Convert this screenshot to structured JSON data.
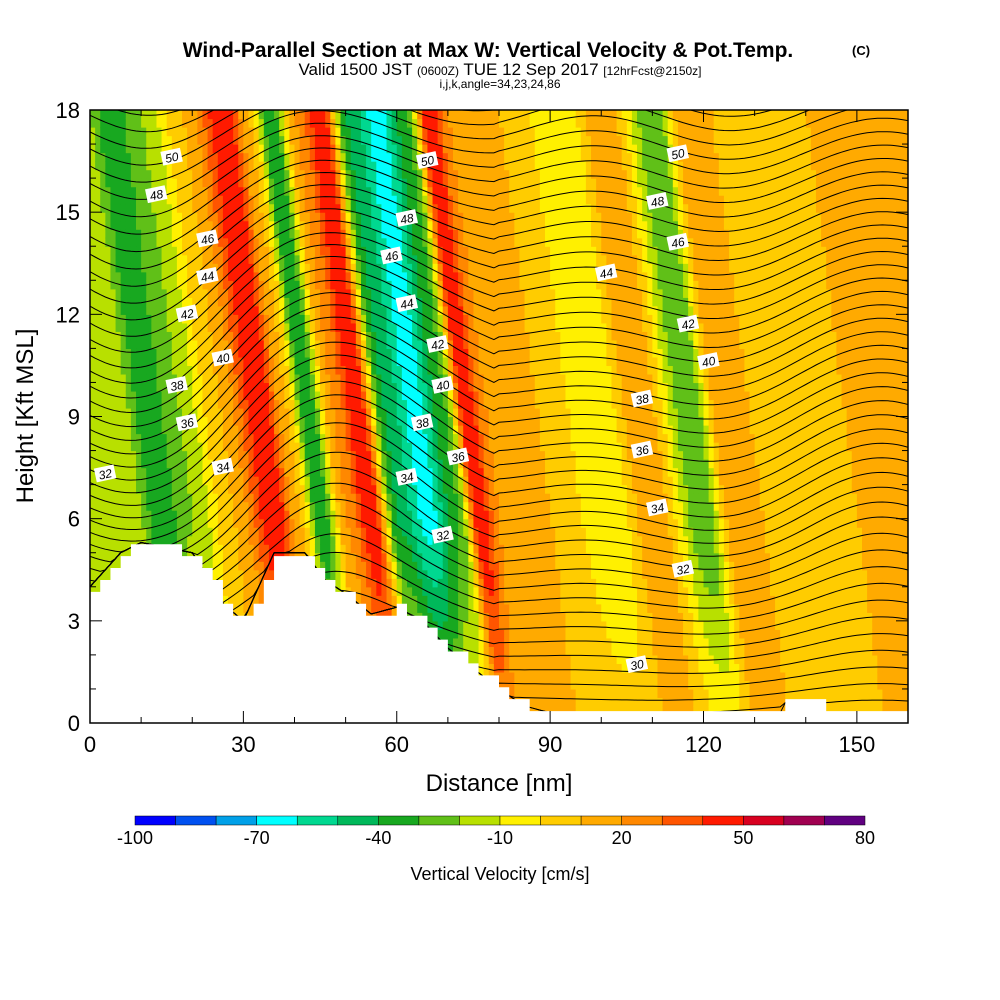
{
  "header": {
    "title": "Wind-Parallel Section at Max W: Vertical Velocity & Pot.Temp.",
    "title_unit": "(C)",
    "valid_prefix": "Valid 1500 JST",
    "valid_utc": "(0600Z)",
    "valid_date": "TUE 12 Sep 2017",
    "forecast": "[12hrFcst@2150z]",
    "indices": "i,j,k,angle=34,23,24,86"
  },
  "chart_data": {
    "type": "heatmap",
    "title": "Wind-Parallel Section at Max W: Vertical Velocity & Pot.Temp.",
    "xlabel": "Distance [nm]",
    "ylabel": "Height [Kft MSL]",
    "xlim": [
      0,
      160
    ],
    "ylim": [
      0,
      18
    ],
    "x_ticks": [
      0,
      30,
      60,
      90,
      120,
      150
    ],
    "y_ticks": [
      0,
      3,
      6,
      9,
      12,
      15,
      18
    ],
    "fill_variable": "Vertical Velocity [cm/s]",
    "colorbar": {
      "label": "Vertical Velocity [cm/s]",
      "ticks": [
        -100,
        -70,
        -40,
        -10,
        20,
        50,
        80
      ],
      "bounds": [
        -100,
        -90,
        -80,
        -70,
        -60,
        -50,
        -40,
        -30,
        -20,
        -10,
        0,
        10,
        20,
        30,
        40,
        50,
        60,
        70,
        80
      ],
      "colors": [
        "#0000ff",
        "#0050f0",
        "#00a0e8",
        "#00ffff",
        "#00d890",
        "#00b85a",
        "#18a820",
        "#60c018",
        "#b8e000",
        "#fff000",
        "#ffcc00",
        "#ffaa00",
        "#ff8800",
        "#ff5500",
        "#ff1a00",
        "#d80020",
        "#a00050",
        "#600080"
      ]
    },
    "velocity_bands": [
      {
        "x": 0,
        "value": -20
      },
      {
        "x": 3,
        "value": -40
      },
      {
        "x": 10,
        "value": -20
      },
      {
        "x": 18,
        "value": 10
      },
      {
        "x": 26,
        "value": 50
      },
      {
        "x": 31,
        "value": 10
      },
      {
        "x": 35,
        "value": -40
      },
      {
        "x": 40,
        "value": 20
      },
      {
        "x": 45,
        "value": 50
      },
      {
        "x": 50,
        "value": -40
      },
      {
        "x": 56,
        "value": -65
      },
      {
        "x": 62,
        "value": -30
      },
      {
        "x": 66,
        "value": 50
      },
      {
        "x": 70,
        "value": 20
      },
      {
        "x": 80,
        "value": 10
      },
      {
        "x": 92,
        "value": -10
      },
      {
        "x": 100,
        "value": 20
      },
      {
        "x": 110,
        "value": -30
      },
      {
        "x": 116,
        "value": 20
      },
      {
        "x": 125,
        "value": 5
      },
      {
        "x": 140,
        "value": 10
      },
      {
        "x": 158,
        "value": 15
      }
    ],
    "terrain": [
      {
        "x": 0,
        "h": 4.0
      },
      {
        "x": 3,
        "h": 4.5
      },
      {
        "x": 6,
        "h": 5.0
      },
      {
        "x": 10,
        "h": 5.3
      },
      {
        "x": 20,
        "h": 5.0
      },
      {
        "x": 23,
        "h": 4.3
      },
      {
        "x": 26,
        "h": 3.5
      },
      {
        "x": 30,
        "h": 3.0
      },
      {
        "x": 33,
        "h": 4.0
      },
      {
        "x": 36,
        "h": 5.0
      },
      {
        "x": 42,
        "h": 5.0
      },
      {
        "x": 46,
        "h": 4.2
      },
      {
        "x": 50,
        "h": 3.8
      },
      {
        "x": 55,
        "h": 3.2
      },
      {
        "x": 60,
        "h": 3.4
      },
      {
        "x": 65,
        "h": 3.0
      },
      {
        "x": 70,
        "h": 2.2
      },
      {
        "x": 75,
        "h": 1.6
      },
      {
        "x": 80,
        "h": 1.0
      },
      {
        "x": 85,
        "h": 0.5
      },
      {
        "x": 90,
        "h": 0.3
      },
      {
        "x": 135,
        "h": 0.3
      },
      {
        "x": 136,
        "h": 0.6
      },
      {
        "x": 142,
        "h": 0.6
      },
      {
        "x": 143,
        "h": 0.3
      },
      {
        "x": 160,
        "h": 0.3
      }
    ],
    "isentrope_levels": [
      30,
      32,
      34,
      36,
      38,
      40,
      42,
      44,
      46,
      48,
      50
    ],
    "isentrope_labels": [
      {
        "x": 3,
        "y": 7.3,
        "text": "32"
      },
      {
        "x": 26,
        "y": 7.5,
        "text": "34"
      },
      {
        "x": 19,
        "y": 8.8,
        "text": "36"
      },
      {
        "x": 17,
        "y": 9.9,
        "text": "38"
      },
      {
        "x": 26,
        "y": 10.7,
        "text": "40"
      },
      {
        "x": 19,
        "y": 12.0,
        "text": "42"
      },
      {
        "x": 23,
        "y": 13.1,
        "text": "44"
      },
      {
        "x": 23,
        "y": 14.2,
        "text": "46"
      },
      {
        "x": 13,
        "y": 15.5,
        "text": "48"
      },
      {
        "x": 16,
        "y": 16.6,
        "text": "50"
      },
      {
        "x": 62,
        "y": 7.2,
        "text": "34"
      },
      {
        "x": 69,
        "y": 5.5,
        "text": "32"
      },
      {
        "x": 65,
        "y": 8.8,
        "text": "38"
      },
      {
        "x": 72,
        "y": 7.8,
        "text": "36"
      },
      {
        "x": 69,
        "y": 9.9,
        "text": "40"
      },
      {
        "x": 68,
        "y": 11.1,
        "text": "42"
      },
      {
        "x": 62,
        "y": 12.3,
        "text": "44"
      },
      {
        "x": 59,
        "y": 13.7,
        "text": "46"
      },
      {
        "x": 62,
        "y": 14.8,
        "text": "48"
      },
      {
        "x": 66,
        "y": 16.5,
        "text": "50"
      },
      {
        "x": 107,
        "y": 1.7,
        "text": "30"
      },
      {
        "x": 116,
        "y": 4.5,
        "text": "32"
      },
      {
        "x": 111,
        "y": 6.3,
        "text": "34"
      },
      {
        "x": 108,
        "y": 8.0,
        "text": "36"
      },
      {
        "x": 108,
        "y": 9.5,
        "text": "38"
      },
      {
        "x": 121,
        "y": 10.6,
        "text": "40"
      },
      {
        "x": 117,
        "y": 11.7,
        "text": "42"
      },
      {
        "x": 101,
        "y": 13.2,
        "text": "44"
      },
      {
        "x": 115,
        "y": 14.1,
        "text": "46"
      },
      {
        "x": 111,
        "y": 15.3,
        "text": "48"
      },
      {
        "x": 115,
        "y": 16.7,
        "text": "50"
      }
    ]
  }
}
